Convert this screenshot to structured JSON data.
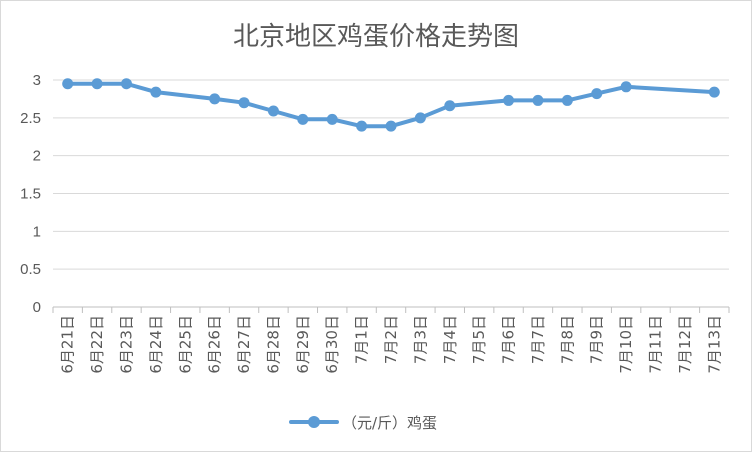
{
  "chart_data": {
    "type": "line",
    "title": "北京地区鸡蛋价格走势图",
    "xlabel": "",
    "ylabel": "",
    "ylim": [
      0,
      3
    ],
    "yticks": [
      "0",
      "0.5",
      "1",
      "1.5",
      "2",
      "2.5",
      "3"
    ],
    "grid": true,
    "legend_position": "bottom",
    "categories": [
      "6月21日",
      "6月22日",
      "6月23日",
      "6月24日",
      "6月25日",
      "6月26日",
      "6月27日",
      "6月28日",
      "6月29日",
      "6月30日",
      "7月1日",
      "7月2日",
      "7月3日",
      "7月4日",
      "7月5日",
      "7月6日",
      "7月7日",
      "7月8日",
      "7月9日",
      "7月10日",
      "7月11日",
      "7月12日",
      "7月13日"
    ],
    "series": [
      {
        "name": "（元/斤）鸡蛋",
        "color": "#5b9bd5",
        "values": [
          2.95,
          2.95,
          2.95,
          2.84,
          null,
          2.75,
          2.7,
          2.59,
          2.48,
          2.48,
          2.39,
          2.39,
          2.5,
          2.66,
          null,
          2.73,
          2.73,
          2.73,
          2.82,
          2.91,
          null,
          null,
          2.84
        ]
      }
    ]
  }
}
